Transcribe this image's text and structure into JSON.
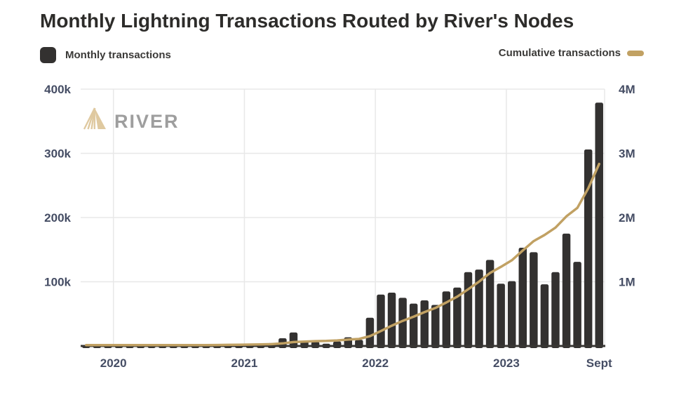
{
  "page": {
    "title": "Monthly Lightning Transactions Routed by River's Nodes"
  },
  "legend": {
    "monthly_label": "Monthly transactions",
    "cumulative_label": "Cumulative transactions"
  },
  "watermark": {
    "brand": "RIVER"
  },
  "colors": {
    "bar": "#333130",
    "line": "#c1a163",
    "grid": "#e8e8e8",
    "axis_label": "#454d64",
    "baseline": "#383633",
    "title": "#2d2c2a",
    "watermark_icon": "#dfc9a0",
    "watermark_text": "#9e9e9e"
  },
  "chart_data": {
    "type": "bar",
    "title": "Monthly Lightning Transactions Routed by River's Nodes",
    "grid": true,
    "legend_position": "top",
    "categories": [
      "2019-10",
      "2019-11",
      "2019-12",
      "2020-01",
      "2020-02",
      "2020-03",
      "2020-04",
      "2020-05",
      "2020-06",
      "2020-07",
      "2020-08",
      "2020-09",
      "2020-10",
      "2020-11",
      "2020-12",
      "2021-01",
      "2021-02",
      "2021-03",
      "2021-04",
      "2021-05",
      "2021-06",
      "2021-07",
      "2021-08",
      "2021-09",
      "2021-10",
      "2021-11",
      "2021-12",
      "2022-01",
      "2022-02",
      "2022-03",
      "2022-04",
      "2022-05",
      "2022-06",
      "2022-07",
      "2022-08",
      "2022-09",
      "2022-10",
      "2022-11",
      "2022-12",
      "2023-01",
      "2023-02",
      "2023-03",
      "2023-04",
      "2023-05",
      "2023-06",
      "2023-07",
      "2023-08",
      "2023-09"
    ],
    "series": [
      {
        "name": "Monthly transactions",
        "type": "bar",
        "axis": "left",
        "values": [
          400,
          500,
          600,
          700,
          800,
          1000,
          3000,
          1200,
          1200,
          1300,
          1400,
          1500,
          1800,
          2000,
          2000,
          2200,
          2500,
          4500,
          12000,
          21000,
          7500,
          6500,
          3500,
          7000,
          13500,
          9500,
          44000,
          80000,
          83000,
          75000,
          66000,
          71000,
          64000,
          85000,
          91000,
          115000,
          119000,
          134000,
          97000,
          101000,
          153000,
          146000,
          96000,
          115000,
          175000,
          131000,
          306000,
          379000
        ]
      },
      {
        "name": "Cumulative transactions",
        "type": "line",
        "axis": "right",
        "values": [
          400,
          900,
          1500,
          2200,
          3000,
          4000,
          7000,
          8200,
          9400,
          10700,
          12100,
          13600,
          15400,
          17400,
          19400,
          21600,
          24100,
          28600,
          40600,
          61600,
          69100,
          75600,
          79100,
          86100,
          99600,
          109100,
          153100,
          233100,
          316100,
          391100,
          457100,
          528100,
          592100,
          677100,
          768100,
          883100,
          1002100,
          1136100,
          1233100,
          1334100,
          1487100,
          1633100,
          1729100,
          1844100,
          2019100,
          2150100,
          2456100,
          2835100
        ]
      }
    ],
    "left_axis": {
      "lim": [
        0,
        400000
      ],
      "tick_values": [
        400000,
        300000,
        200000,
        100000
      ],
      "tick_labels": [
        "400k",
        "300k",
        "200k",
        "100k"
      ]
    },
    "right_axis": {
      "lim": [
        0,
        4000000
      ],
      "tick_values": [
        4000000,
        3000000,
        2000000,
        1000000
      ],
      "tick_labels": [
        "4M",
        "3M",
        "2M",
        "1M"
      ]
    },
    "x_ticks": [
      {
        "label": "2020",
        "at": "2020-01",
        "align": "boundary"
      },
      {
        "label": "2021",
        "at": "2021-01",
        "align": "boundary"
      },
      {
        "label": "2022",
        "at": "2022-01",
        "align": "boundary"
      },
      {
        "label": "2023",
        "at": "2023-01",
        "align": "boundary"
      },
      {
        "label": "Sept",
        "at": "2023-09",
        "align": "center"
      }
    ]
  }
}
